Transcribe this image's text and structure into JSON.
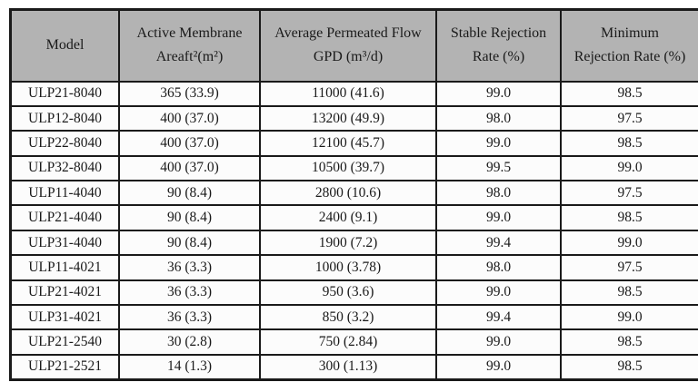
{
  "table": {
    "columns": [
      {
        "id": "model",
        "label_lines": [
          "Model"
        ]
      },
      {
        "id": "membrane-area",
        "label_lines": [
          "Active Membrane",
          "Areaft²(m²)"
        ]
      },
      {
        "id": "permeated-flow",
        "label_lines": [
          "Average Permeated Flow",
          "GPD (m³/d)"
        ]
      },
      {
        "id": "stable-rejection",
        "label_lines": [
          "Stable Rejection",
          "Rate (%)"
        ]
      },
      {
        "id": "minimum-rejection",
        "label_lines": [
          "Minimum",
          "Rejection Rate (%)"
        ]
      }
    ],
    "rows": [
      [
        "ULP21-8040",
        "365 (33.9)",
        "11000 (41.6)",
        "99.0",
        "98.5"
      ],
      [
        "ULP12-8040",
        "400 (37.0)",
        "13200 (49.9)",
        "98.0",
        "97.5"
      ],
      [
        "ULP22-8040",
        "400 (37.0)",
        "12100 (45.7)",
        "99.0",
        "98.5"
      ],
      [
        "ULP32-8040",
        "400 (37.0)",
        "10500 (39.7)",
        "99.5",
        "99.0"
      ],
      [
        "ULP11-4040",
        "90 (8.4)",
        "2800 (10.6)",
        "98.0",
        "97.5"
      ],
      [
        "ULP21-4040",
        "90 (8.4)",
        "2400 (9.1)",
        "99.0",
        "98.5"
      ],
      [
        "ULP31-4040",
        "90 (8.4)",
        "1900 (7.2)",
        "99.4",
        "99.0"
      ],
      [
        "ULP11-4021",
        "36 (3.3)",
        "1000 (3.78)",
        "98.0",
        "97.5"
      ],
      [
        "ULP21-4021",
        "36 (3.3)",
        "950 (3.6)",
        "99.0",
        "98.5"
      ],
      [
        "ULP31-4021",
        "36 (3.3)",
        "850 (3.2)",
        "99.4",
        "99.0"
      ],
      [
        "ULP21-2540",
        "30 (2.8)",
        "750 (2.84)",
        "99.0",
        "98.5"
      ],
      [
        "ULP21-2521",
        "14 (1.3)",
        "300 (1.13)",
        "99.0",
        "98.5"
      ]
    ]
  },
  "colors": {
    "header_bg": "#b3b3b3",
    "border": "#1a1a1a",
    "cell_bg": "#fcfcfc",
    "page_bg": "#ffffff",
    "text": "#1a1a1a"
  }
}
